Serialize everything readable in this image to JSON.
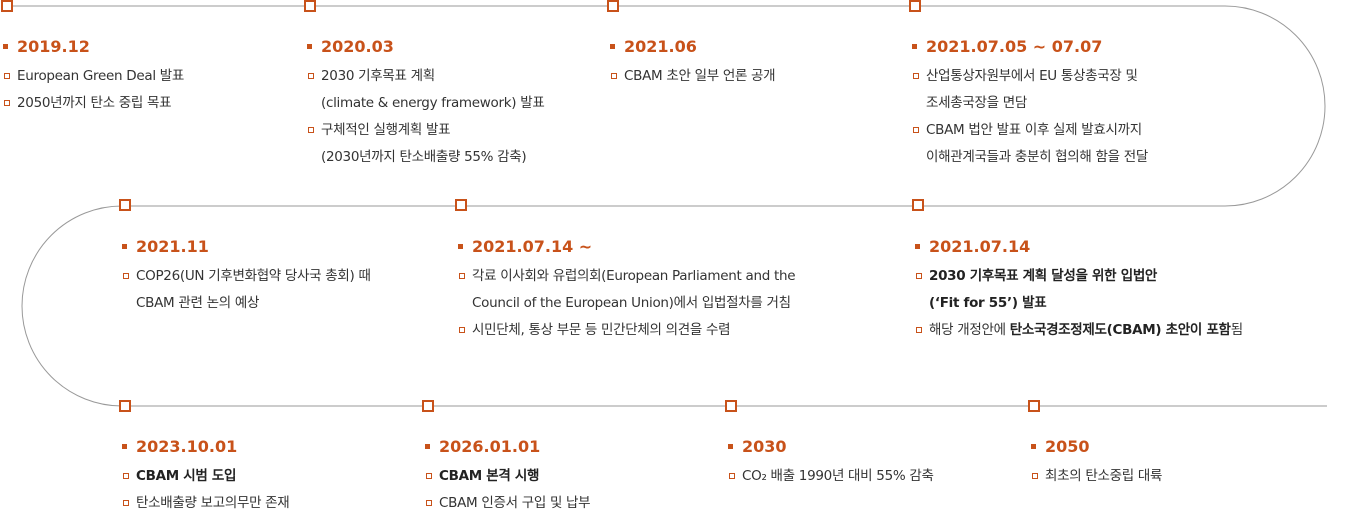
{
  "colors": {
    "accent": "#c8521a",
    "line": "#999999",
    "text": "#333333"
  },
  "rows": [
    [
      {
        "date": "2019.12",
        "items": [
          {
            "text": "European Green Deal 발표"
          },
          {
            "text": "2050년까지 탄소 중립 목표"
          }
        ]
      },
      {
        "date": "2020.03",
        "items": [
          {
            "text": "2030 기후목표 계획\n(climate & energy framework) 발표"
          },
          {
            "text": "구체적인 실행계획 발표\n(2030년까지 탄소배출량 55% 감축)"
          }
        ]
      },
      {
        "date": "2021.06",
        "items": [
          {
            "text": "CBAM 초안 일부 언론 공개"
          }
        ]
      },
      {
        "date": "2021.07.05 ~ 07.07",
        "items": [
          {
            "text": "산업통상자원부에서 EU 통상총국장 및\n조세총국장을 면담"
          },
          {
            "text": "CBAM 법안 발표 이후 실제 발효시까지\n이해관계국들과 충분히 협의해 함을 전달"
          }
        ]
      }
    ],
    [
      {
        "date": "2021.11",
        "items": [
          {
            "text": "COP26(UN 기후변화협약 당사국 총회) 때\nCBAM 관련 논의 예상"
          }
        ]
      },
      {
        "date": "2021.07.14 ~",
        "items": [
          {
            "text": "각료 이사회와 유럽의회(European Parliament and the\nCouncil of the European Union)에서 입법절차를 거침"
          },
          {
            "text": "시민단체, 통상 부문 등 민간단체의 의견을 수렴"
          }
        ]
      },
      {
        "date": "2021.07.14",
        "items": [
          {
            "bold": "2030 기후목표 계획 달성을 위한 입법안\n(‘Fit for 55’) 발표"
          },
          {
            "pre": "해당 개정안에 ",
            "bold": "탄소국경조정제도(CBAM) 초안이 포함",
            "post": "됨"
          }
        ]
      }
    ],
    [
      {
        "date": "2023.10.01",
        "items": [
          {
            "bold": "CBAM 시범 도입"
          },
          {
            "text": "탄소배출량 보고의무만 존재"
          }
        ]
      },
      {
        "date": "2026.01.01",
        "items": [
          {
            "bold": "CBAM 본격 시행"
          },
          {
            "text": "CBAM 인증서 구입 및 납부"
          }
        ]
      },
      {
        "date": "2030",
        "items": [
          {
            "text": "CO₂ 배출 1990년 대비 55% 감축"
          }
        ]
      },
      {
        "date": "2050",
        "items": [
          {
            "text": "최초의 탄소중립 대륙"
          }
        ]
      }
    ]
  ]
}
